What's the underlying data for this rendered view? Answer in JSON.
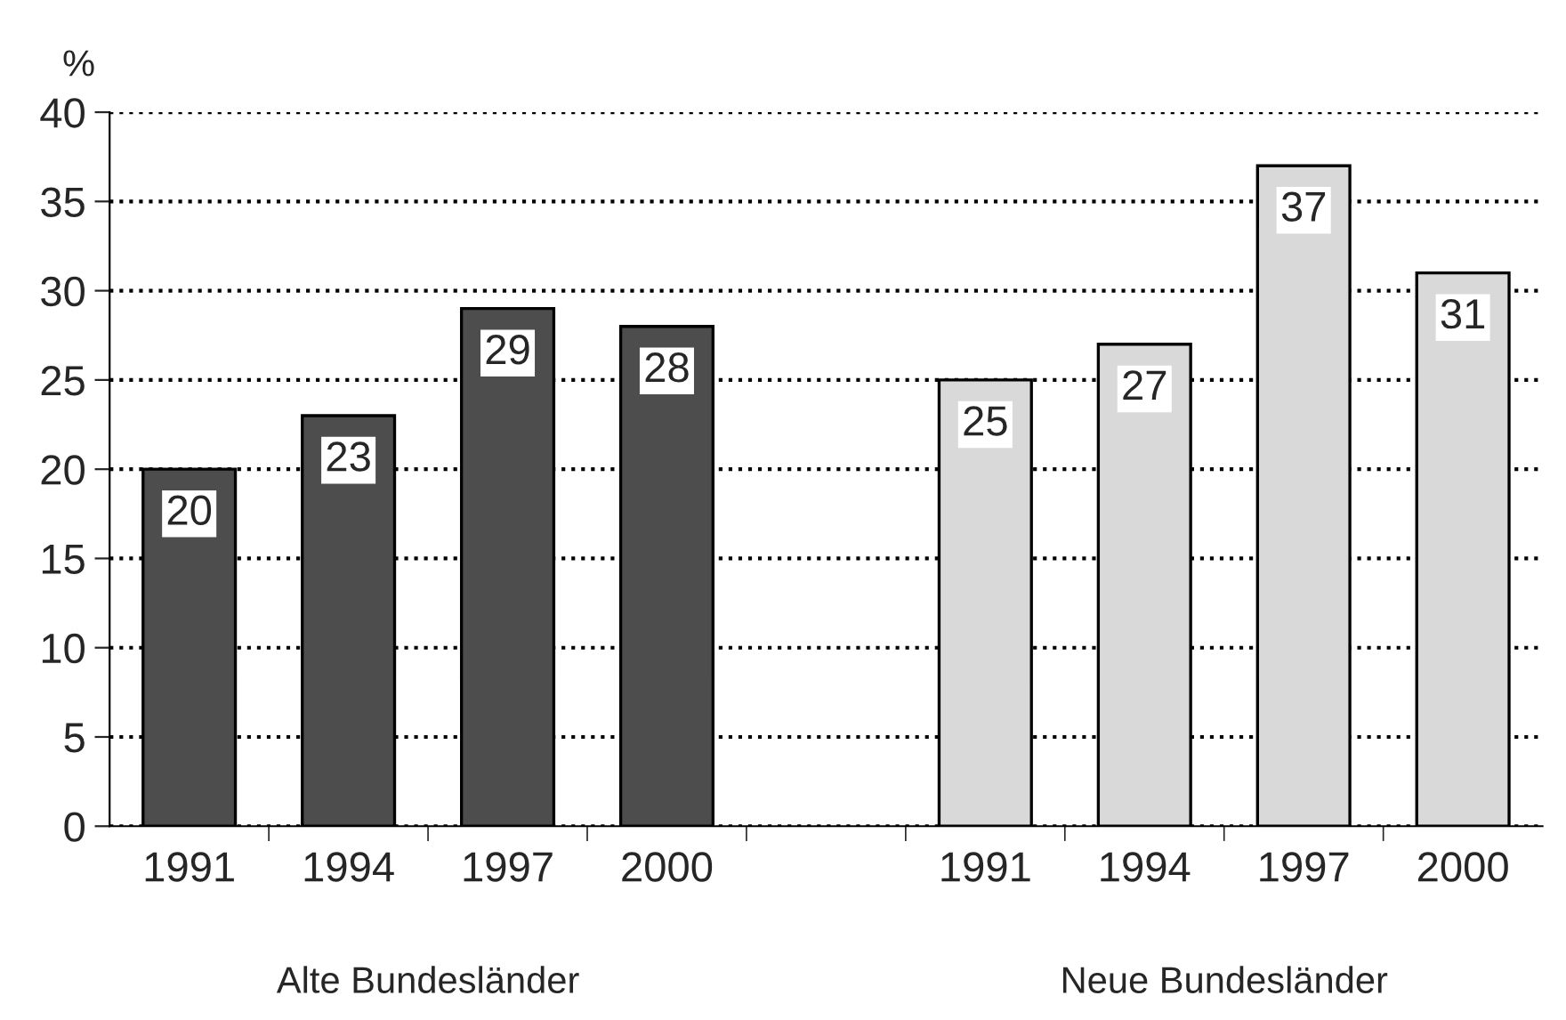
{
  "chart_data": {
    "type": "bar",
    "ylabel": "%",
    "categories": [
      "1991",
      "1994",
      "1997",
      "2000",
      null,
      "1991",
      "1994",
      "1997",
      "2000"
    ],
    "values": [
      20,
      23,
      29,
      28,
      null,
      25,
      27,
      37,
      31
    ],
    "colors": [
      "#4d4d4d",
      "#4d4d4d",
      "#4d4d4d",
      "#4d4d4d",
      "#ffffff",
      "#d9d9d9",
      "#d9d9d9",
      "#d9d9d9",
      "#d9d9d9"
    ],
    "ylim": [
      0,
      40
    ],
    "yticks": [
      0,
      5,
      10,
      15,
      20,
      25,
      30,
      35,
      40
    ],
    "grid": "y",
    "line_style": "dotted",
    "data_labels": true,
    "annotations": [
      "Alte Bundesländer",
      "Neue Bundesländer"
    ]
  }
}
